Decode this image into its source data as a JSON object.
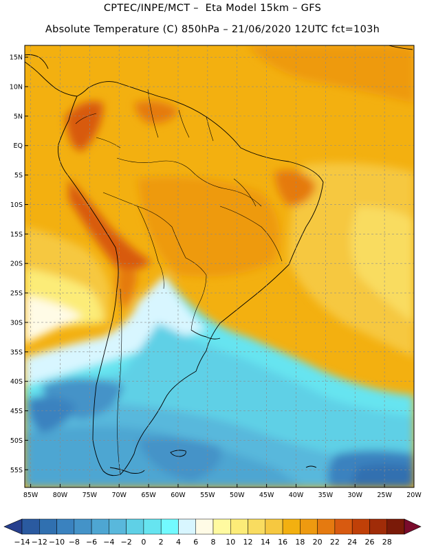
{
  "header": {
    "line1": "CPTEC/INPE/MCT –  Eta Model 15km – GFS",
    "line2": "Absolute Temperature (C) 850hPa – 21/06/2020 12UTC fct=103h"
  },
  "axes": {
    "lat_labels": [
      "15N",
      "10N",
      "5N",
      "EQ",
      "5S",
      "10S",
      "15S",
      "20S",
      "25S",
      "30S",
      "35S",
      "40S",
      "45S",
      "50S",
      "55S"
    ],
    "lat_values": [
      15,
      10,
      5,
      0,
      -5,
      -10,
      -15,
      -20,
      -25,
      -30,
      -35,
      -40,
      -45,
      -50,
      -55
    ],
    "lon_labels": [
      "85W",
      "80W",
      "75W",
      "70W",
      "65W",
      "60W",
      "55W",
      "50W",
      "45W",
      "40W",
      "35W",
      "30W",
      "25W",
      "20W"
    ],
    "lon_values": [
      -85,
      -80,
      -75,
      -70,
      -65,
      -60,
      -55,
      -50,
      -45,
      -40,
      -35,
      -30,
      -25,
      -20
    ],
    "lon_range": [
      -86,
      -20
    ],
    "lat_range": [
      -58,
      17
    ]
  },
  "colorbar": {
    "labels": [
      "-14",
      "-12",
      "-10",
      "-8",
      "-6",
      "-4",
      "-2",
      "0",
      "2",
      "4",
      "6",
      "8",
      "10",
      "12",
      "14",
      "16",
      "18",
      "20",
      "22",
      "24",
      "26",
      "28"
    ],
    "colors": [
      "#2a5aa0",
      "#3070b0",
      "#3a82bf",
      "#4493c8",
      "#4ea6d2",
      "#59b8dc",
      "#5fd0e6",
      "#66e4f0",
      "#72faff",
      "#d8f6ff",
      "#fffbe6",
      "#fffaa0",
      "#fcec78",
      "#f9dc60",
      "#f6c840",
      "#f3b010",
      "#ee9a10",
      "#e57a10",
      "#d85a10",
      "#c04008",
      "#a02c08",
      "#7a1a08"
    ],
    "low_color": "#263f8e",
    "high_color": "#7a0b2c"
  }
}
